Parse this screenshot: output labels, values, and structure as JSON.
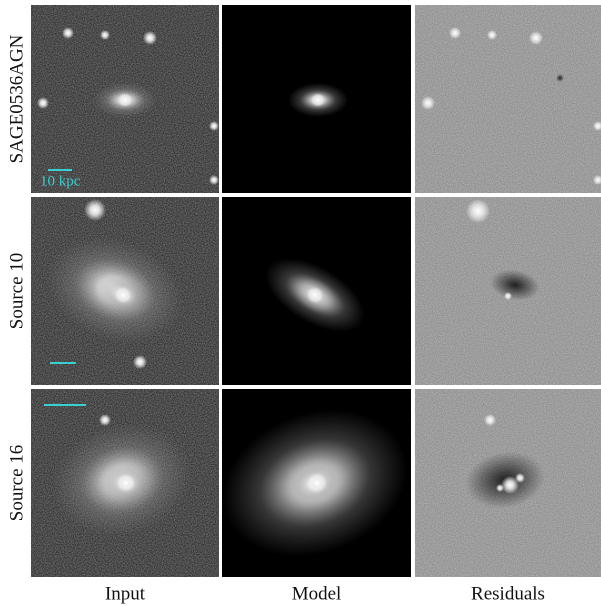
{
  "rows": [
    {
      "label": "SAGE0536AGN"
    },
    {
      "label": "Source 10"
    },
    {
      "label": "Source 16"
    }
  ],
  "columns": [
    "Input",
    "Model",
    "Residuals"
  ],
  "scale_bar": {
    "label": "10 kpc"
  }
}
